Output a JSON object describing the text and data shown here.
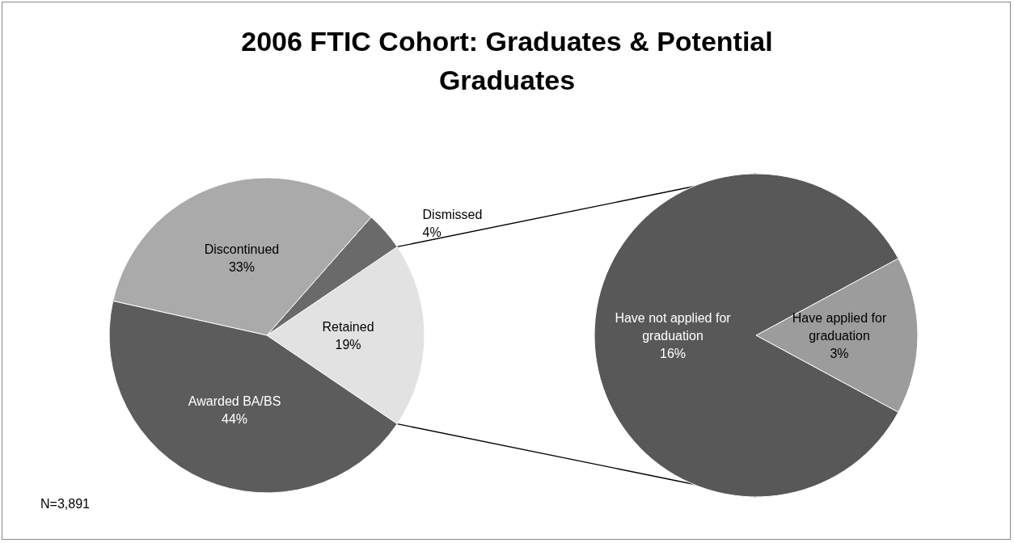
{
  "chart_data": [
    {
      "type": "pie",
      "title": "2006 FTIC Cohort: Graduates & Potential Graduates",
      "categories": [
        "Retained",
        "Dismissed",
        "Discontinued",
        "Awarded BA/BS"
      ],
      "values": [
        19,
        4,
        33,
        44
      ],
      "value_labels": [
        "19%",
        "4%",
        "33%",
        "44%"
      ],
      "colors": [
        "#e2e2e2",
        "#6a6a6a",
        "#aaaaaa",
        "#5c5c5c"
      ],
      "annotations": [
        "N=3,891"
      ]
    },
    {
      "type": "pie",
      "categories": [
        "Have applied for graduation",
        "Have not applied for graduation"
      ],
      "values": [
        3,
        16
      ],
      "value_labels": [
        "3%",
        "16%"
      ],
      "colors": [
        "#9c9c9c",
        "#585858"
      ]
    }
  ]
}
